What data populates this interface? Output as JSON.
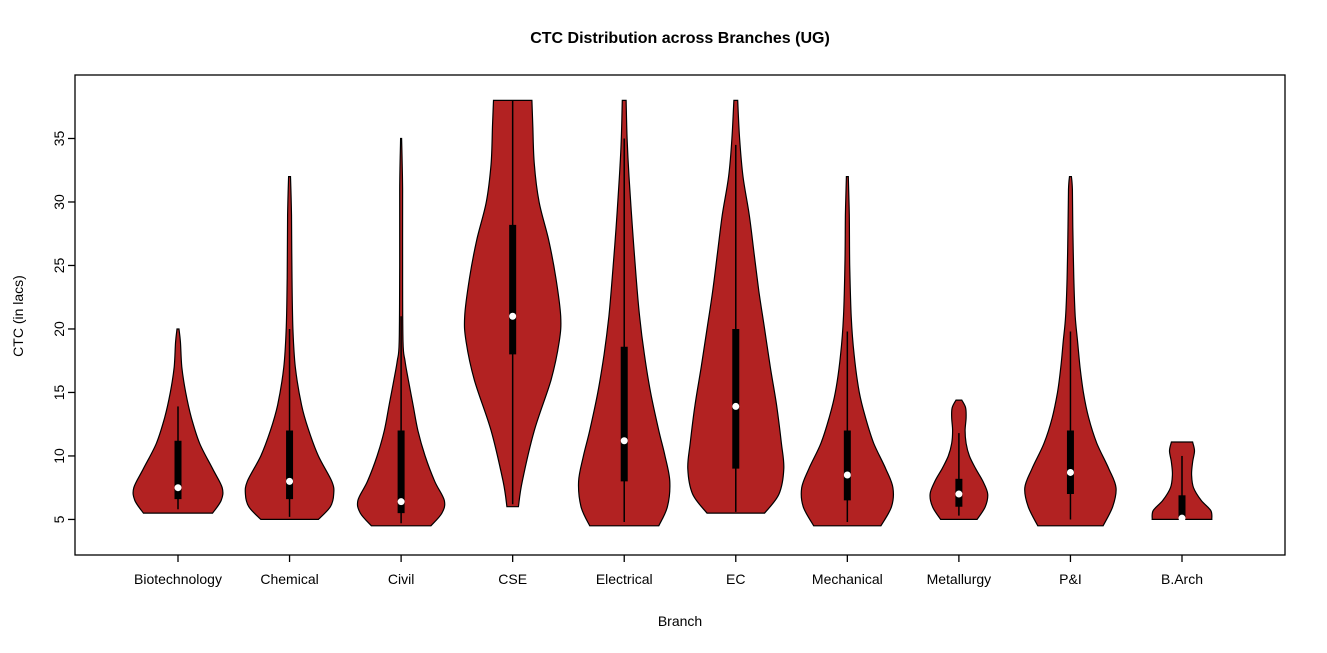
{
  "page": {
    "background": "#ffffff"
  },
  "chart_data": {
    "type": "violin",
    "title": "CTC Distribution across Branches (UG)",
    "xlabel": "Branch",
    "ylabel": "CTC (in lacs)",
    "ylim": [
      2.2,
      40
    ],
    "yticks": [
      5,
      10,
      15,
      20,
      25,
      30,
      35
    ],
    "violin_fill": "#B22222",
    "violin_stroke": "#000000",
    "box_color": "#000000",
    "median_dot_color": "#ffffff",
    "categories": [
      "Biotechnology",
      "Chemical",
      "Civil",
      "CSE",
      "Electrical",
      "EC",
      "Mechanical",
      "Metallurgy",
      "P&I",
      "B.Arch"
    ],
    "series": [
      {
        "name": "Biotechnology",
        "min": 5.5,
        "max": 20,
        "median": 7.5,
        "q1": 6.6,
        "q3": 11.2,
        "whisker_low": 5.8,
        "whisker_high": 13.9,
        "profile": [
          [
            5.5,
            0.72
          ],
          [
            6.5,
            0.9
          ],
          [
            7.5,
            0.92
          ],
          [
            9,
            0.72
          ],
          [
            11,
            0.45
          ],
          [
            13,
            0.28
          ],
          [
            15,
            0.16
          ],
          [
            17,
            0.08
          ],
          [
            19,
            0.05
          ],
          [
            20,
            0.02
          ]
        ]
      },
      {
        "name": "Chemical",
        "min": 5,
        "max": 32,
        "median": 8,
        "q1": 6.6,
        "q3": 12,
        "whisker_low": 5.2,
        "whisker_high": 20,
        "profile": [
          [
            5,
            0.6
          ],
          [
            6,
            0.85
          ],
          [
            7,
            0.92
          ],
          [
            8,
            0.88
          ],
          [
            10,
            0.6
          ],
          [
            12,
            0.4
          ],
          [
            14,
            0.25
          ],
          [
            17,
            0.12
          ],
          [
            20,
            0.07
          ],
          [
            24,
            0.05
          ],
          [
            29,
            0.04
          ],
          [
            32,
            0.02
          ]
        ]
      },
      {
        "name": "Civil",
        "min": 4.5,
        "max": 35,
        "median": 6.4,
        "q1": 5.5,
        "q3": 12,
        "whisker_low": 4.7,
        "whisker_high": 21,
        "profile": [
          [
            4.5,
            0.62
          ],
          [
            5.5,
            0.85
          ],
          [
            6.5,
            0.9
          ],
          [
            8,
            0.7
          ],
          [
            10,
            0.5
          ],
          [
            12,
            0.35
          ],
          [
            14,
            0.25
          ],
          [
            16,
            0.15
          ],
          [
            17.5,
            0.08
          ],
          [
            19,
            0.04
          ],
          [
            25,
            0.03
          ],
          [
            31,
            0.03
          ],
          [
            35,
            0.01
          ]
        ]
      },
      {
        "name": "CSE",
        "min": 6,
        "max": 38,
        "median": 21,
        "q1": 18,
        "q3": 28.2,
        "whisker_low": 6.2,
        "whisker_high": 38,
        "profile": [
          [
            6,
            0.12
          ],
          [
            8,
            0.2
          ],
          [
            12,
            0.45
          ],
          [
            16,
            0.8
          ],
          [
            19,
            0.97
          ],
          [
            21,
            1.0
          ],
          [
            24,
            0.9
          ],
          [
            27,
            0.75
          ],
          [
            30,
            0.55
          ],
          [
            33,
            0.45
          ],
          [
            36,
            0.42
          ],
          [
            38,
            0.4
          ]
        ]
      },
      {
        "name": "Electrical",
        "min": 4.5,
        "max": 38,
        "median": 11.2,
        "q1": 8,
        "q3": 18.6,
        "whisker_low": 4.8,
        "whisker_high": 35,
        "profile": [
          [
            4.5,
            0.72
          ],
          [
            6,
            0.9
          ],
          [
            8,
            0.95
          ],
          [
            10,
            0.85
          ],
          [
            12,
            0.72
          ],
          [
            15,
            0.55
          ],
          [
            18,
            0.42
          ],
          [
            21,
            0.32
          ],
          [
            24,
            0.25
          ],
          [
            28,
            0.17
          ],
          [
            32,
            0.1
          ],
          [
            35,
            0.06
          ],
          [
            38,
            0.04
          ]
        ]
      },
      {
        "name": "EC",
        "min": 5.5,
        "max": 38,
        "median": 13.9,
        "q1": 9,
        "q3": 20,
        "whisker_low": 5.6,
        "whisker_high": 34.5,
        "profile": [
          [
            5.5,
            0.6
          ],
          [
            7,
            0.9
          ],
          [
            9,
            1.0
          ],
          [
            11,
            0.95
          ],
          [
            14,
            0.85
          ],
          [
            17,
            0.72
          ],
          [
            20,
            0.6
          ],
          [
            23,
            0.48
          ],
          [
            26,
            0.38
          ],
          [
            29,
            0.28
          ],
          [
            32,
            0.15
          ],
          [
            35,
            0.08
          ],
          [
            38,
            0.04
          ]
        ]
      },
      {
        "name": "Mechanical",
        "min": 4.5,
        "max": 32,
        "median": 8.5,
        "q1": 6.5,
        "q3": 12,
        "whisker_low": 4.8,
        "whisker_high": 19.8,
        "profile": [
          [
            4.5,
            0.7
          ],
          [
            6,
            0.92
          ],
          [
            7.5,
            0.95
          ],
          [
            9,
            0.8
          ],
          [
            11,
            0.55
          ],
          [
            13,
            0.38
          ],
          [
            15,
            0.25
          ],
          [
            18,
            0.14
          ],
          [
            21,
            0.08
          ],
          [
            25,
            0.05
          ],
          [
            29,
            0.04
          ],
          [
            32,
            0.02
          ]
        ]
      },
      {
        "name": "Metallurgy",
        "min": 5,
        "max": 14.4,
        "median": 7,
        "q1": 6,
        "q3": 8.2,
        "whisker_low": 5.3,
        "whisker_high": 11.8,
        "profile": [
          [
            5,
            0.38
          ],
          [
            6,
            0.55
          ],
          [
            7,
            0.6
          ],
          [
            8,
            0.5
          ],
          [
            9,
            0.35
          ],
          [
            10,
            0.22
          ],
          [
            11,
            0.15
          ],
          [
            12,
            0.13
          ],
          [
            13,
            0.15
          ],
          [
            13.8,
            0.14
          ],
          [
            14.4,
            0.06
          ]
        ]
      },
      {
        "name": "P&I",
        "min": 4.5,
        "max": 32,
        "median": 8.7,
        "q1": 7,
        "q3": 12,
        "whisker_low": 5,
        "whisker_high": 19.8,
        "profile": [
          [
            4.5,
            0.68
          ],
          [
            6,
            0.88
          ],
          [
            7.5,
            0.95
          ],
          [
            9,
            0.8
          ],
          [
            11,
            0.55
          ],
          [
            13,
            0.38
          ],
          [
            15,
            0.27
          ],
          [
            17,
            0.2
          ],
          [
            19,
            0.15
          ],
          [
            21,
            0.1
          ],
          [
            24,
            0.07
          ],
          [
            28,
            0.05
          ],
          [
            31,
            0.04
          ],
          [
            32,
            0.02
          ]
        ]
      },
      {
        "name": "B.Arch",
        "min": 5,
        "max": 11.1,
        "median": 5.1,
        "q1": 5,
        "q3": 6.9,
        "whisker_low": 5,
        "whisker_high": 10,
        "profile": [
          [
            5,
            0.62
          ],
          [
            5.7,
            0.6
          ],
          [
            6.5,
            0.4
          ],
          [
            7.5,
            0.24
          ],
          [
            8.5,
            0.2
          ],
          [
            9.5,
            0.22
          ],
          [
            10.4,
            0.26
          ],
          [
            11.1,
            0.22
          ]
        ]
      }
    ]
  }
}
